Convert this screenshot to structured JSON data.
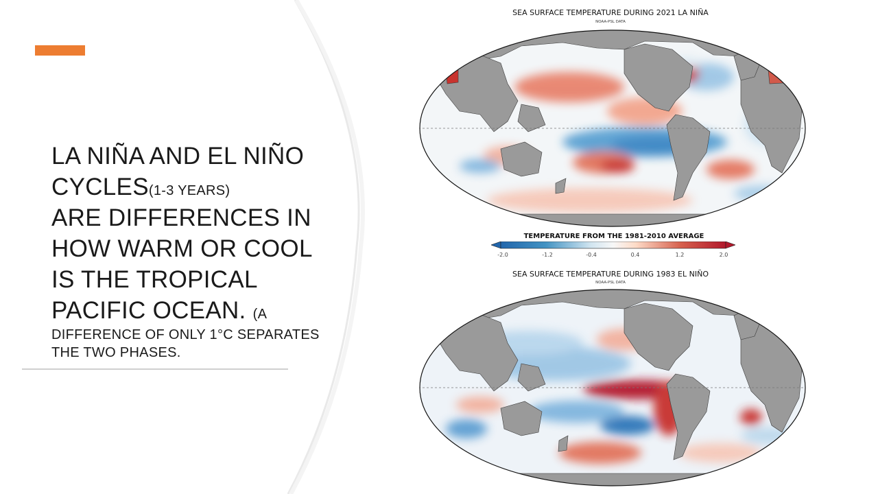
{
  "slide": {
    "accent_color": "#ED7D31",
    "heading_line1": "LA NIÑA AND EL NIÑO",
    "heading_line2": "CYCLES",
    "heading_small": "(1-3 YEARS)",
    "body_line1": "ARE DIFFERENCES IN",
    "body_line2": "HOW WARM OR COOL",
    "body_line3": "IS THE TROPICAL",
    "body_line4": "PACIFIC OCEAN.",
    "note_part1": "(A",
    "note_line2": "DIFFERENCE OF ONLY 1°C SEPARATES",
    "note_line3": "THE TWO PHASES."
  },
  "maps": {
    "top": {
      "title": "SEA SURFACE TEMPERATURE DURING 2021 LA NIÑA",
      "source": "NOAA-PSL DATA"
    },
    "bottom": {
      "title": "SEA SURFACE TEMPERATURE DURING 1983 EL NIÑO",
      "source": "NOAA-PSL DATA"
    }
  },
  "legend": {
    "title": "TEMPERATURE FROM THE 1981-2010 AVERAGE",
    "ticks": [
      "-2.0",
      "-1.2",
      "-0.4",
      "0.4",
      "1.2",
      "2.0"
    ],
    "cold_color": "#2166ac",
    "warm_color": "#b2182b",
    "land_color": "#9a9a9a"
  }
}
